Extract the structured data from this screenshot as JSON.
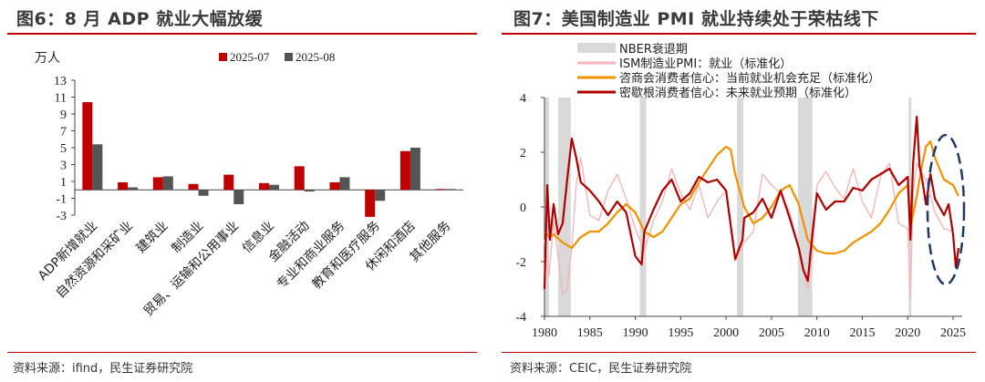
{
  "left": {
    "title": "图6：8 月 ADP 就业大幅放缓",
    "source": "资料来源：ifind，民生证券研究院",
    "chart_data": {
      "type": "bar",
      "unit_label": "万人",
      "ylim": [
        -3,
        13
      ],
      "yticks": [
        -3,
        -1,
        1,
        3,
        5,
        7,
        9,
        11,
        13
      ],
      "categories": [
        "ADP新增就业",
        "自然资源和采矿业",
        "建筑业",
        "制造业",
        "贸易、运输和公用事业",
        "信息业",
        "金融活动",
        "专业和商业服务",
        "教育和医疗服务",
        "休闲和酒店",
        "其他服务"
      ],
      "series": [
        {
          "name": "2025-07",
          "color": "#c00000",
          "values": [
            10.4,
            0.9,
            1.5,
            0.7,
            1.8,
            0.8,
            2.8,
            0.9,
            -3.2,
            4.6,
            0.1
          ]
        },
        {
          "name": "2025-08",
          "color": "#555555",
          "values": [
            5.4,
            0.3,
            1.6,
            -0.7,
            -1.7,
            0.6,
            -0.2,
            1.5,
            -1.3,
            5.0,
            0.1
          ]
        }
      ],
      "legend_position": "top-right"
    }
  },
  "right": {
    "title": "图7：美国制造业 PMI 就业持续处于荣枯线下",
    "source": "资料来源：CEIC，民生证券研究院",
    "chart_data": {
      "type": "line",
      "xlim": [
        1980,
        2026
      ],
      "xticks": [
        1980,
        1985,
        1990,
        1995,
        2000,
        2005,
        2010,
        2015,
        2020,
        2025
      ],
      "ylim": [
        -4,
        4
      ],
      "yticks": [
        -4,
        -2,
        0,
        2,
        4
      ],
      "recessions": [
        [
          1980.0,
          1980.5
        ],
        [
          1981.5,
          1982.9
        ],
        [
          1990.5,
          1991.2
        ],
        [
          2001.2,
          2001.9
        ],
        [
          2007.9,
          2009.5
        ],
        [
          2020.1,
          2020.4
        ]
      ],
      "legend": [
        "NBER衰退期",
        "ISM制造业PMI：就业（标准化）",
        "咨商会消费者信心：当前就业机会充足（标准化）",
        "密歇根消费者信心：未来就业预期（标准化）"
      ],
      "series": [
        {
          "name": "ISM制造业PMI：就业（标准化）",
          "color": "#f4b6b8",
          "x": [
            1980,
            1980.5,
            1981,
            1981.5,
            1982,
            1982.5,
            1983,
            1983.5,
            1984,
            1985,
            1986,
            1987,
            1988,
            1989,
            1990,
            1991,
            1992,
            1993,
            1994,
            1995,
            1996,
            1997,
            1998,
            1999,
            2000,
            2001,
            2002,
            2003,
            2004,
            2005,
            2006,
            2007,
            2008,
            2009,
            2009.5,
            2010,
            2011,
            2012,
            2013,
            2014,
            2015,
            2016,
            2017,
            2018,
            2019,
            2020,
            2020.3,
            2020.6,
            2021,
            2022,
            2023,
            2024,
            2025
          ],
          "y": [
            -1.2,
            -2.5,
            -0.5,
            -1.8,
            -3.2,
            -3.0,
            -1.5,
            0.8,
            1.8,
            -0.3,
            -0.5,
            0.6,
            1.2,
            0.3,
            -0.8,
            -1.6,
            -0.5,
            0.2,
            1.4,
            0.5,
            -0.1,
            0.8,
            -0.4,
            0.2,
            0.6,
            -2.0,
            -1.3,
            -0.9,
            1.2,
            0.8,
            0.5,
            -0.2,
            -1.5,
            -3.0,
            -1.8,
            0.8,
            1.3,
            0.7,
            0.3,
            1.4,
            0.2,
            -0.4,
            1.1,
            1.6,
            -0.6,
            -0.8,
            -3.3,
            0.5,
            1.6,
            1.0,
            -0.2,
            -0.8,
            -0.9
          ]
        },
        {
          "name": "咨商会消费者信心：当前就业机会充足（标准化）",
          "color": "#f39200",
          "x": [
            1980,
            1980.5,
            1981,
            1982,
            1983,
            1984,
            1985,
            1986,
            1987,
            1988,
            1989,
            1990,
            1991,
            1992,
            1993,
            1994,
            1995,
            1996,
            1997,
            1998,
            1999,
            2000,
            2000.5,
            2001,
            2002,
            2003,
            2004,
            2005,
            2006,
            2007,
            2008,
            2009,
            2010,
            2011,
            2012,
            2013,
            2014,
            2015,
            2016,
            2017,
            2018,
            2019,
            2020,
            2020.4,
            2021,
            2021.5,
            2022,
            2022.5,
            2023,
            2024,
            2025,
            2025.6
          ],
          "y": [
            -0.9,
            -1.1,
            -1.0,
            -1.3,
            -1.5,
            -1.1,
            -0.9,
            -0.9,
            -0.6,
            -0.2,
            0.1,
            -0.2,
            -0.9,
            -1.1,
            -0.9,
            -0.4,
            0.1,
            0.3,
            0.9,
            1.4,
            1.9,
            2.2,
            2.1,
            1.2,
            0.0,
            -0.6,
            -0.4,
            0.0,
            0.6,
            0.8,
            0.1,
            -1.2,
            -1.6,
            -1.7,
            -1.7,
            -1.6,
            -1.3,
            -1.1,
            -0.9,
            -0.6,
            -0.1,
            0.5,
            0.8,
            -0.6,
            0.4,
            1.4,
            2.2,
            2.4,
            1.8,
            1.0,
            0.8,
            0.4
          ]
        },
        {
          "name": "密歇根消费者信心：未来就业预期（标准化）",
          "color": "#b00000",
          "x": [
            1980,
            1980.3,
            1980.6,
            1981,
            1981.5,
            1982,
            1982.5,
            1983,
            1983.5,
            1984,
            1985,
            1986,
            1987,
            1988,
            1989,
            1990,
            1990.7,
            1991,
            1992,
            1993,
            1994,
            1995,
            1996,
            1997,
            1998,
            1999,
            2000,
            2001,
            2001.8,
            2002,
            2003,
            2004,
            2005,
            2006,
            2007,
            2008,
            2008.5,
            2009,
            2009.5,
            2010,
            2011,
            2012,
            2013,
            2014,
            2015,
            2016,
            2017,
            2018,
            2019,
            2020,
            2020.3,
            2020.6,
            2021,
            2021.3,
            2021.6,
            2022,
            2022.5,
            2023,
            2024,
            2024.5,
            2025,
            2025.3,
            2025.6
          ],
          "y": [
            -3.0,
            0.8,
            -1.2,
            0.1,
            -1.0,
            -0.6,
            1.0,
            2.5,
            1.8,
            0.9,
            0.6,
            0.2,
            -0.3,
            0.2,
            -0.2,
            -1.8,
            -2.1,
            -0.9,
            -0.1,
            0.6,
            1.0,
            0.2,
            0.5,
            1.1,
            0.9,
            1.0,
            0.6,
            -1.9,
            -1.2,
            -0.4,
            -0.2,
            0.3,
            -0.4,
            0.6,
            -0.4,
            -1.5,
            -2.3,
            -2.7,
            -1.0,
            0.5,
            -0.1,
            0.2,
            0.2,
            0.7,
            0.6,
            1.0,
            1.2,
            1.4,
            0.8,
            1.1,
            -1.2,
            1.6,
            3.3,
            1.5,
            1.0,
            0.1,
            1.2,
            0.3,
            -0.3,
            0.1,
            -1.0,
            -2.2,
            -1.5
          ]
        }
      ]
    }
  }
}
